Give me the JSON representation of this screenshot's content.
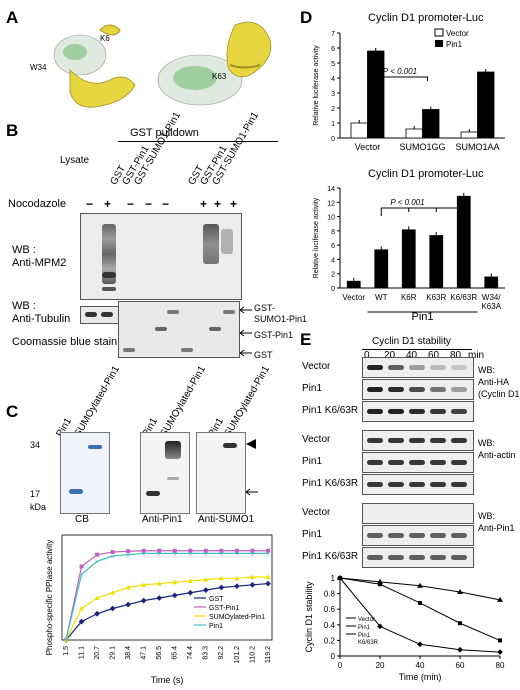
{
  "panels": {
    "A": "A",
    "B": "B",
    "C": "C",
    "D": "D",
    "E": "E"
  },
  "panelA": {
    "k6": "K6",
    "w34": "W34",
    "k63": "K63"
  },
  "panelB": {
    "gst_pulldown": "GST pulldown",
    "lanes": [
      "Lysate",
      "GST",
      "GST-Pin1",
      "GST-SUMO1-Pin1",
      "GST",
      "GST-Pin1",
      "GST-SUMO1-Pin1"
    ],
    "nocodazole": "Nocodazole",
    "signs": [
      "−",
      "+",
      "−",
      "−",
      "−",
      "+",
      "+",
      "+"
    ],
    "wb1": "WB :",
    "wb1b": "Anti-MPM2",
    "wb2": "WB :",
    "wb2b": "Anti-Tubulin",
    "coomassie": "Coomassie blue stain",
    "right": [
      "GST-",
      "SUMO1-Pin1",
      "GST-Pin1",
      "GST"
    ]
  },
  "panelC": {
    "lanes1": [
      "Pin1",
      "SUMOylated-Pin1"
    ],
    "lanes2": [
      "Pin1",
      "SUMOylated-Pin1"
    ],
    "lanes3": [
      "Pin1",
      "SUMOylated-Pin1"
    ],
    "mw": [
      "34",
      "17"
    ],
    "kda": "kDa",
    "blot_labels": [
      "CB",
      "Anti-Pin1",
      "Anti-SUMO1"
    ]
  },
  "panelD": {
    "title1": "Cyclin D1 promoter-Luc",
    "title2": "Cyclin D1 promoter-Luc",
    "ylabel": "Relative luciferase activity",
    "pval1": "P < 0.001",
    "pval2": "P < 0.001",
    "pin1": "Pin1"
  },
  "panelE": {
    "title": "Cyclin D1 stability",
    "min": "min",
    "times": [
      "0",
      "20",
      "40",
      "60",
      "80"
    ],
    "rows1": [
      "Vector",
      "Pin1",
      "Pin1 K6/63R"
    ],
    "rows2": [
      "Vector",
      "Pin1",
      "Pin1 K6/63R"
    ],
    "rows3": [
      "Vector",
      "Pin1",
      "Pin1 K6/63R"
    ],
    "wb1": [
      "WB:",
      "Anti-HA",
      "(Cyclin D1)"
    ],
    "wb2": [
      "WB:",
      "Anti-actin"
    ],
    "wb3": [
      "WB:",
      "Anti-Pin1"
    ]
  },
  "chart_data": [
    {
      "type": "line",
      "ylabel": "Phospho-specific PPIase activity",
      "xlabel": "Time (s)",
      "x": [
        "1.5",
        "11.1",
        "20.7",
        "29.1",
        "38.4",
        "47.1",
        "56.5",
        "65.4",
        "74.4",
        "83.3",
        "92.2",
        "101.2",
        "110.2",
        "119.2"
      ],
      "series": [
        {
          "name": "GST",
          "color": "#1a237e",
          "values": [
            0.0,
            0.07,
            0.1,
            0.12,
            0.135,
            0.15,
            0.16,
            0.17,
            0.18,
            0.19,
            0.2,
            0.205,
            0.21,
            0.215
          ]
        },
        {
          "name": "GST-Pin1",
          "color": "#c060c0",
          "values": [
            0.0,
            0.28,
            0.325,
            0.335,
            0.338,
            0.34,
            0.34,
            0.34,
            0.34,
            0.34,
            0.34,
            0.34,
            0.34,
            0.34
          ]
        },
        {
          "name": "SUMOylated-Pin1",
          "color": "#f0e000",
          "values": [
            0.0,
            0.12,
            0.16,
            0.18,
            0.2,
            0.21,
            0.215,
            0.22,
            0.225,
            0.23,
            0.235,
            0.235,
            0.24,
            0.24
          ]
        },
        {
          "name": "Pin1",
          "color": "#40c0c0",
          "values": [
            0.0,
            0.25,
            0.3,
            0.32,
            0.325,
            0.33,
            0.33,
            0.33,
            0.33,
            0.33,
            0.33,
            0.33,
            0.33,
            0.33
          ]
        }
      ]
    },
    {
      "type": "bar",
      "title": "Cyclin D1 promoter-Luc",
      "ylabel": "Relative luciferase activity",
      "categories": [
        "Vector",
        "SUMO1GG",
        "SUMO1AA"
      ],
      "ylim": [
        0,
        7
      ],
      "yticks": [
        "0",
        "1",
        "2",
        "3",
        "4",
        "5",
        "6",
        "7"
      ],
      "series": [
        {
          "name": "Vector",
          "values": [
            1.0,
            0.6,
            0.4
          ]
        },
        {
          "name": "Pin1",
          "values": [
            5.8,
            1.9,
            4.4
          ]
        }
      ]
    },
    {
      "type": "bar",
      "title": "Cyclin D1 promoter-Luc",
      "ylabel": "Relative luciferase activity",
      "categories": [
        "Vector",
        "WT",
        "K6R",
        "K63R",
        "K6/63R",
        "W34/\nK63A"
      ],
      "ylim": [
        0,
        14
      ],
      "yticks": [
        "0",
        "2",
        "4",
        "6",
        "8",
        "10",
        "12",
        "14"
      ],
      "values": [
        1.0,
        5.4,
        8.2,
        7.4,
        12.9,
        1.6
      ]
    },
    {
      "type": "line",
      "ylabel": "Cyclin D1 stability",
      "xlabel": "Time (min)",
      "x": [
        0,
        20,
        40,
        60,
        80
      ],
      "xticks": [
        "0",
        "20",
        "40",
        "60",
        "80"
      ],
      "ylim": [
        0,
        1
      ],
      "yticks": [
        "0",
        "0.2",
        "0.4",
        "0.6",
        "0.8",
        "1"
      ],
      "series": [
        {
          "name": "Vector",
          "values": [
            1.0,
            0.38,
            0.15,
            0.08,
            0.05
          ]
        },
        {
          "name": "Pin1",
          "values": [
            1.0,
            0.92,
            0.68,
            0.42,
            0.2
          ]
        },
        {
          "name": "Pin1\nK6/63R",
          "values": [
            1.0,
            0.95,
            0.9,
            0.82,
            0.72
          ]
        }
      ]
    }
  ]
}
